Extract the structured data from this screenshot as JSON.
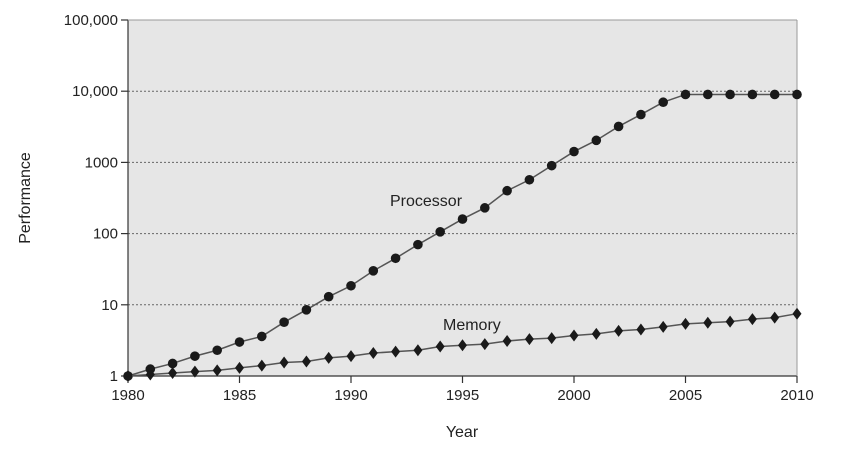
{
  "chart_data": {
    "type": "line",
    "title": "",
    "xlabel": "Year",
    "ylabel": "Performance",
    "yscale": "log",
    "xlim": [
      1980,
      2010
    ],
    "ylim": [
      1,
      100000
    ],
    "grid": true,
    "x_ticks": [
      "1980",
      "1985",
      "1990",
      "1995",
      "2000",
      "2005",
      "2010"
    ],
    "y_ticks": [
      "1",
      "10",
      "100",
      "1000",
      "10,000",
      "100,000"
    ],
    "y_tick_values": [
      1,
      10,
      100,
      1000,
      10000,
      100000
    ],
    "x": [
      1980,
      1981,
      1982,
      1983,
      1984,
      1985,
      1986,
      1987,
      1988,
      1989,
      1990,
      1991,
      1992,
      1993,
      1994,
      1995,
      1996,
      1997,
      1998,
      1999,
      2000,
      2001,
      2002,
      2003,
      2004,
      2005,
      2006,
      2007,
      2008,
      2009,
      2010
    ],
    "series": [
      {
        "name": "Processor",
        "marker": "circle",
        "values": [
          1,
          1.25,
          1.5,
          1.9,
          2.3,
          3,
          3.6,
          5.7,
          8.5,
          13,
          18.5,
          30,
          45,
          70,
          106,
          160,
          230,
          400,
          570,
          900,
          1420,
          2040,
          3200,
          4700,
          7000,
          9000,
          9000,
          9000,
          9000,
          9000,
          9000
        ]
      },
      {
        "name": "Memory",
        "marker": "diamond",
        "values": [
          1,
          1.05,
          1.1,
          1.15,
          1.2,
          1.3,
          1.4,
          1.55,
          1.6,
          1.8,
          1.9,
          2.1,
          2.2,
          2.3,
          2.6,
          2.7,
          2.8,
          3.1,
          3.3,
          3.4,
          3.7,
          3.9,
          4.3,
          4.5,
          4.9,
          5.4,
          5.6,
          5.8,
          6.3,
          6.6,
          7.5
        ]
      }
    ],
    "annotations": [
      "Processor",
      "Memory"
    ],
    "colors": {
      "plot_bg": "#e6e6e6",
      "line": "#555555",
      "marker": "#1a1a1a"
    }
  }
}
